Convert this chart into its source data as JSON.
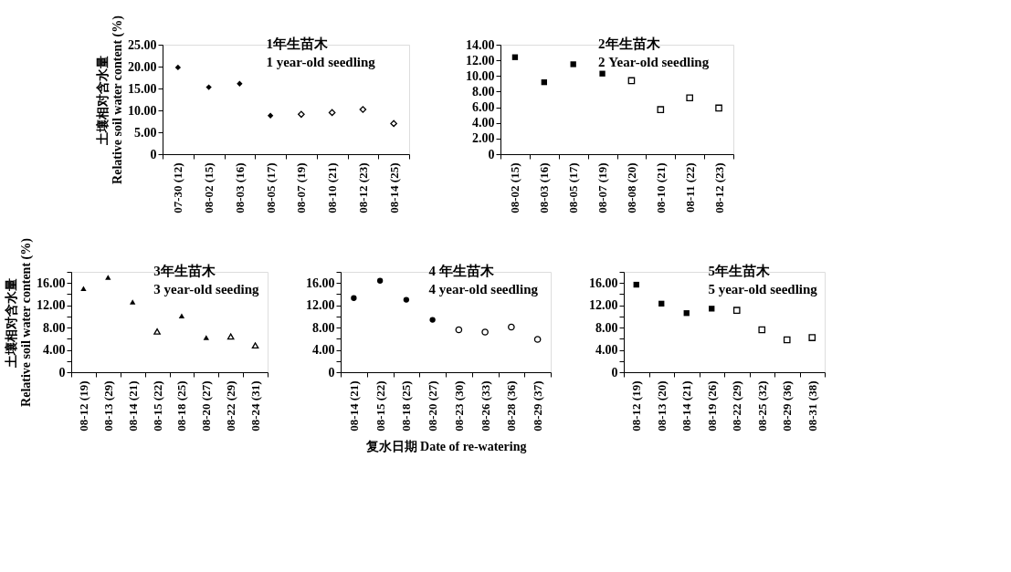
{
  "chart_data": [
    {
      "type": "scatter",
      "title": "1年生苗木\n1 year-old seedling",
      "ylabel": "土壤相对含水量\nRelative soil water content (%)",
      "marker": "diamond",
      "categories": [
        "07-30 (12)",
        "08-02 (15)",
        "08-03 (16)",
        "08-05 (17)",
        "08-07 (19)",
        "08-10 (21)",
        "08-12 (23)",
        "08-14 (25)"
      ],
      "ylim": [
        0,
        25
      ],
      "yticks": [
        {
          "value": 0,
          "label": "0"
        },
        {
          "value": 5,
          "label": "5.00"
        },
        {
          "value": 10,
          "label": "10.00"
        },
        {
          "value": 15,
          "label": "15.00"
        },
        {
          "value": 20,
          "label": "20.00"
        },
        {
          "value": 25,
          "label": "25.00"
        }
      ],
      "series": [
        {
          "color": "#000000",
          "values": [
            19.8,
            15.3,
            16.1,
            8.8,
            null,
            null,
            null,
            null
          ]
        },
        {
          "color": "#000000",
          "values": [
            null,
            null,
            null,
            null,
            9.1,
            9.5,
            10.2,
            7.0
          ]
        }
      ]
    },
    {
      "type": "scatter",
      "title": "2年生苗木\n2 Year-old seedling",
      "marker": "square",
      "categories": [
        "08-02 (15)",
        "08-03 (16)",
        "08-05 (17)",
        "08-07 (19)",
        "08-08 (20)",
        "08-10 (21)",
        "08-11 (22)",
        "08-12 (23)"
      ],
      "ylim": [
        0,
        14
      ],
      "yticks": [
        {
          "value": 0,
          "label": "0"
        },
        {
          "value": 2,
          "label": "2.00"
        },
        {
          "value": 4,
          "label": "4.00"
        },
        {
          "value": 6,
          "label": "6.00"
        },
        {
          "value": 8,
          "label": "8.00"
        },
        {
          "value": 10,
          "label": "10.00"
        },
        {
          "value": 12,
          "label": "12.00"
        },
        {
          "value": 14,
          "label": "14.00"
        }
      ],
      "series": [
        {
          "color": "#000000",
          "values": [
            12.4,
            9.2,
            11.5,
            10.3,
            null,
            null,
            null,
            null
          ]
        },
        {
          "color": "#000000",
          "values": [
            null,
            null,
            null,
            null,
            9.4,
            5.7,
            7.2,
            5.9
          ]
        }
      ]
    },
    {
      "type": "scatter",
      "title": "3年生苗木\n3 year-old seeding",
      "ylabel": "土壤相对含水量\nRelative soil water content (%)",
      "marker": "triangle",
      "categories": [
        "08-12 (19)",
        "08-13 (29)",
        "08-14 (21)",
        "08-15 (22)",
        "08-18 (25)",
        "08-20 (27)",
        "08-22 (29)",
        "08-24 (31)"
      ],
      "ylim": [
        0,
        18
      ],
      "yticks": [
        {
          "value": 0,
          "label": "0"
        },
        {
          "value": 2,
          "label": null
        },
        {
          "value": 4,
          "label": "4.00"
        },
        {
          "value": 6,
          "label": null
        },
        {
          "value": 8,
          "label": "8.00"
        },
        {
          "value": 10,
          "label": null
        },
        {
          "value": 12,
          "label": "12.00"
        },
        {
          "value": 14,
          "label": null
        },
        {
          "value": 16,
          "label": "16.00"
        },
        {
          "value": 18,
          "label": null
        }
      ],
      "series": [
        {
          "color": "#000000",
          "values": [
            15.0,
            17.0,
            12.6,
            null,
            10.1,
            6.2,
            null,
            null
          ]
        },
        {
          "color": "#000000",
          "values": [
            null,
            null,
            null,
            7.3,
            null,
            null,
            6.4,
            4.8
          ]
        }
      ]
    },
    {
      "type": "scatter",
      "title": "4 年生苗木\n4 year-old seedling",
      "xlabel": "复水日期 Date of re-watering",
      "marker": "circle",
      "categories": [
        "08-14 (21)",
        "08-15 (22)",
        "08-18 (25)",
        "08-20 (27)",
        "08-23 (30)",
        "08-26 (33)",
        "08-28 (36)",
        "08-29 (37)"
      ],
      "ylim": [
        0,
        18
      ],
      "yticks": [
        {
          "value": 0,
          "label": "0"
        },
        {
          "value": 2,
          "label": null
        },
        {
          "value": 4,
          "label": "4.00"
        },
        {
          "value": 6,
          "label": null
        },
        {
          "value": 8,
          "label": "8.00"
        },
        {
          "value": 10,
          "label": null
        },
        {
          "value": 12,
          "label": "12.00"
        },
        {
          "value": 14,
          "label": null
        },
        {
          "value": 16,
          "label": "16.00"
        },
        {
          "value": 18,
          "label": null
        }
      ],
      "series": [
        {
          "color": "#000000",
          "values": [
            13.3,
            16.4,
            13.0,
            9.4,
            null,
            null,
            null,
            null
          ]
        },
        {
          "color": "#000000",
          "values": [
            null,
            null,
            null,
            null,
            7.6,
            7.2,
            8.1,
            5.9
          ]
        }
      ]
    },
    {
      "type": "scatter",
      "title": "5年生苗木\n5 year-old seedling",
      "marker": "square",
      "categories": [
        "08-12 (19)",
        "08-13 (20)",
        "08-14 (21)",
        "08-19 (26)",
        "08-22 (29)",
        "08-25 (32)",
        "08-29 (36)",
        "08-31 (38)"
      ],
      "ylim": [
        0,
        18
      ],
      "yticks": [
        {
          "value": 0,
          "label": "0"
        },
        {
          "value": 2,
          "label": null
        },
        {
          "value": 4,
          "label": "4.00"
        },
        {
          "value": 6,
          "label": null
        },
        {
          "value": 8,
          "label": "8.00"
        },
        {
          "value": 10,
          "label": null
        },
        {
          "value": 12,
          "label": "12.00"
        },
        {
          "value": 14,
          "label": null
        },
        {
          "value": 16,
          "label": "16.00"
        },
        {
          "value": 18,
          "label": null
        }
      ],
      "series": [
        {
          "color": "#000000",
          "values": [
            15.7,
            12.3,
            10.6,
            11.4,
            null,
            null,
            null,
            null
          ]
        },
        {
          "color": "#000000",
          "values": [
            null,
            null,
            null,
            null,
            11.1,
            7.6,
            5.8,
            6.2
          ]
        }
      ]
    }
  ]
}
